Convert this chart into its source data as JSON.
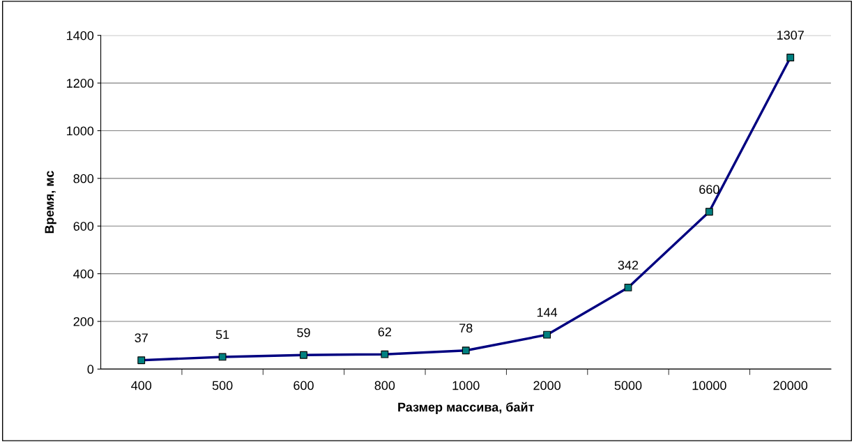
{
  "chart_data": {
    "type": "line",
    "xlabel": "Размер массива, байт",
    "ylabel": "Время, мс",
    "categories": [
      "400",
      "500",
      "600",
      "800",
      "1000",
      "2000",
      "5000",
      "10000",
      "20000"
    ],
    "series": [
      {
        "color": "#000080",
        "colors": [
          "#008080",
          "#008080",
          "#008080",
          "#008080",
          "#008080",
          "#008080",
          "#008080",
          "#008080",
          "#008080"
        ],
        "values": [
          37,
          51,
          59,
          62,
          78,
          144,
          342,
          660,
          1307
        ]
      }
    ],
    "ylim": [
      0,
      1400
    ],
    "yticks": [
      0,
      200,
      400,
      600,
      800,
      1000,
      1200,
      1400
    ],
    "grid": "y",
    "marker": "square",
    "line_style": "solid",
    "data_labels": true,
    "legend": false
  }
}
